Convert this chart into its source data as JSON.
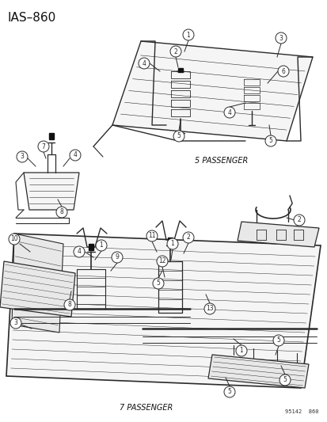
{
  "title": "IAS—860",
  "background_color": "#ffffff",
  "text_color": "#1a1a1a",
  "label_5pass": "5 PASSENGER",
  "label_7pass": "7 PASSENGER",
  "part_number": "95142  860",
  "fig_width": 4.14,
  "fig_height": 5.33,
  "dpi": 100,
  "line_color": "#2a2a2a",
  "fill_light": "#f5f5f5",
  "fill_med": "#e8e8e8",
  "callout_r": 7
}
